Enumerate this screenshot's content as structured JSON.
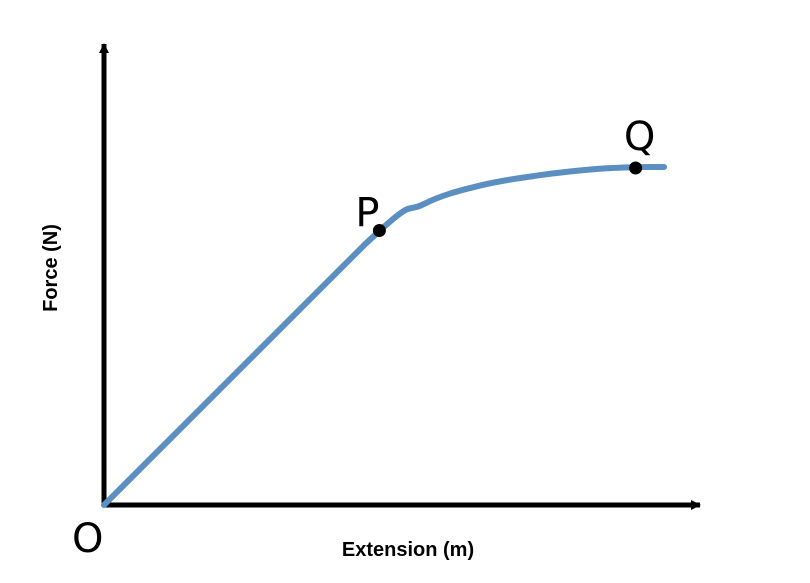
{
  "chart_data": {
    "type": "line",
    "title": "",
    "xlabel": "Extension (m)",
    "ylabel": "Force (N)",
    "origin_label": "O",
    "xlim": [
      0,
      10
    ],
    "ylim": [
      0,
      10
    ],
    "grid": false,
    "legend": "none",
    "axis_ticks": false,
    "series": [
      {
        "color": "#5b8fc1",
        "x": [
          0,
          4.48,
          5.5,
          6.5,
          7.5,
          8.5,
          9.26,
          9.64
        ],
        "y": [
          0,
          5.74,
          6.64,
          7.06,
          7.28,
          7.42,
          7.46,
          7.46
        ]
      }
    ],
    "points": [
      {
        "label": "P",
        "x": 4.74,
        "y": 6.06
      },
      {
        "label": "Q",
        "x": 9.15,
        "y": 7.44
      }
    ]
  }
}
